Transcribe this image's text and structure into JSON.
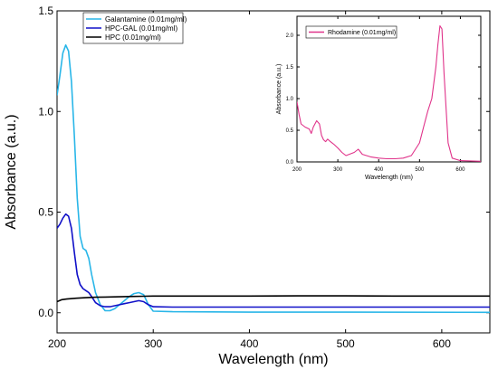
{
  "chart_data": [
    {
      "type": "line",
      "xlabel": "Wavelength (nm)",
      "ylabel": "Absorbance (a.u.)",
      "xlim": [
        200,
        650
      ],
      "ylim": [
        -0.1,
        1.5
      ],
      "xticks": [
        200,
        300,
        400,
        500,
        600
      ],
      "yticks": [
        0.0,
        0.5,
        1.0,
        1.5
      ],
      "grid": false,
      "legend_position": "top-left",
      "series": [
        {
          "name": "Galantamine (0.01mg/ml)",
          "color": "#29b6e8",
          "x": [
            200,
            203,
            206,
            209,
            212,
            215,
            218,
            221,
            224,
            227,
            230,
            233,
            236,
            240,
            245,
            250,
            255,
            260,
            265,
            270,
            275,
            280,
            285,
            290,
            295,
            300,
            320,
            400,
            500,
            650
          ],
          "y": [
            1.08,
            1.18,
            1.29,
            1.33,
            1.3,
            1.15,
            0.88,
            0.57,
            0.38,
            0.32,
            0.31,
            0.27,
            0.19,
            0.1,
            0.04,
            0.01,
            0.01,
            0.02,
            0.04,
            0.06,
            0.08,
            0.095,
            0.1,
            0.09,
            0.04,
            0.008,
            0.005,
            0.003,
            0.003,
            0.002
          ]
        },
        {
          "name": "HPC-GAL (0.01mg/ml)",
          "color": "#1010c8",
          "x": [
            200,
            203,
            206,
            209,
            212,
            215,
            218,
            221,
            224,
            227,
            230,
            233,
            236,
            240,
            245,
            250,
            255,
            260,
            265,
            270,
            275,
            280,
            285,
            290,
            295,
            300,
            320,
            400,
            500,
            650
          ],
          "y": [
            0.42,
            0.44,
            0.47,
            0.49,
            0.48,
            0.42,
            0.3,
            0.19,
            0.14,
            0.12,
            0.11,
            0.1,
            0.08,
            0.05,
            0.035,
            0.03,
            0.03,
            0.035,
            0.04,
            0.045,
            0.05,
            0.055,
            0.06,
            0.055,
            0.04,
            0.03,
            0.028,
            0.028,
            0.028,
            0.028
          ]
        },
        {
          "name": "HPC (0.01mg/ml)",
          "color": "#000000",
          "x": [
            200,
            205,
            210,
            220,
            230,
            240,
            250,
            260,
            270,
            280,
            290,
            300,
            350,
            400,
            450,
            500,
            550,
            600,
            650
          ],
          "y": [
            0.055,
            0.065,
            0.068,
            0.072,
            0.075,
            0.077,
            0.078,
            0.079,
            0.08,
            0.081,
            0.082,
            0.083,
            0.083,
            0.083,
            0.084,
            0.084,
            0.083,
            0.083,
            0.083
          ]
        }
      ]
    },
    {
      "type": "line",
      "xlabel": "Wavelength (nm)",
      "ylabel": "Absorbance (a.u.)",
      "xlim": [
        200,
        650
      ],
      "ylim": [
        0,
        2.3
      ],
      "xticks": [
        200,
        300,
        400,
        500,
        600
      ],
      "yticks": [
        0.0,
        0.5,
        1.0,
        1.5,
        2.0
      ],
      "grid": false,
      "legend_position": "top-left",
      "series": [
        {
          "name": "Rhodamine (0.01mg/ml)",
          "color": "#e0338a",
          "x": [
            200,
            205,
            210,
            220,
            230,
            235,
            240,
            248,
            255,
            260,
            265,
            270,
            275,
            280,
            290,
            300,
            310,
            320,
            340,
            350,
            360,
            380,
            400,
            420,
            440,
            460,
            480,
            500,
            510,
            520,
            530,
            540,
            545,
            550,
            555,
            560,
            570,
            580,
            600,
            650
          ],
          "y": [
            0.95,
            0.75,
            0.6,
            0.55,
            0.52,
            0.45,
            0.55,
            0.65,
            0.6,
            0.42,
            0.35,
            0.32,
            0.36,
            0.33,
            0.28,
            0.22,
            0.15,
            0.1,
            0.15,
            0.2,
            0.12,
            0.08,
            0.06,
            0.05,
            0.05,
            0.06,
            0.1,
            0.3,
            0.55,
            0.8,
            1.0,
            1.5,
            1.85,
            2.15,
            2.1,
            1.4,
            0.3,
            0.06,
            0.02,
            0.01
          ]
        }
      ]
    }
  ]
}
